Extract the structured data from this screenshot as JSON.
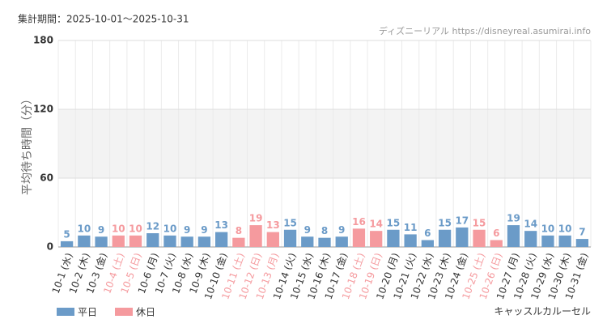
{
  "chart_data": {
    "type": "bar",
    "header": "集計期間：2025-10-01～2025-10-31",
    "source": "ディズニーリアル https://disneyreal.asumirai.info",
    "subtitle": "キャッスルカルーセル",
    "y_label": "平均待ち時間（分）",
    "categories": [
      "10-1 (水)",
      "10-2 (木)",
      "10-3 (金)",
      "10-4 (土)",
      "10-5 (日)",
      "10-6 (月)",
      "10-7 (火)",
      "10-8 (水)",
      "10-9 (木)",
      "10-10 (金)",
      "10-11 (土)",
      "10-12 (日)",
      "10-13 (月)",
      "10-14 (火)",
      "10-15 (水)",
      "10-16 (木)",
      "10-17 (金)",
      "10-18 (土)",
      "10-19 (日)",
      "10-20 (月)",
      "10-21 (火)",
      "10-22 (水)",
      "10-23 (木)",
      "10-24 (金)",
      "10-25 (土)",
      "10-26 (日)",
      "10-27 (月)",
      "10-28 (火)",
      "10-29 (水)",
      "10-30 (木)",
      "10-31 (金)"
    ],
    "series": [
      {
        "name": "平日",
        "color": "#6b9bc8",
        "values": [
          5,
          10,
          9,
          null,
          null,
          12,
          10,
          9,
          9,
          13,
          null,
          null,
          null,
          15,
          9,
          8,
          9,
          null,
          null,
          15,
          11,
          6,
          15,
          17,
          null,
          null,
          19,
          14,
          10,
          10,
          7
        ]
      },
      {
        "name": "休日",
        "color": "#f59a9e",
        "values": [
          null,
          null,
          null,
          10,
          10,
          null,
          null,
          null,
          null,
          null,
          8,
          19,
          13,
          null,
          null,
          null,
          null,
          16,
          14,
          null,
          null,
          null,
          null,
          null,
          15,
          6,
          null,
          null,
          null,
          null,
          null
        ]
      }
    ],
    "ylim": [
      0,
      180
    ],
    "yticks": [
      0,
      60,
      120,
      180
    ],
    "grid": true
  }
}
